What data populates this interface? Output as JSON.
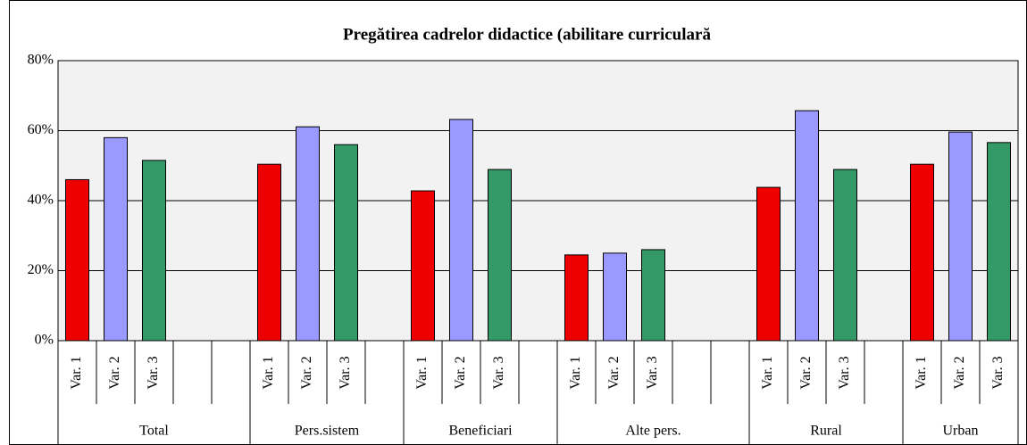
{
  "chart_data": {
    "type": "bar",
    "title": "Pregătirea cadrelor didactice (abilitare curriculară",
    "ylim": [
      0,
      80
    ],
    "yticks": [
      {
        "value": 0,
        "label": "0%"
      },
      {
        "value": 20,
        "label": "20%"
      },
      {
        "value": 40,
        "label": "40%"
      },
      {
        "value": 60,
        "label": "60%"
      },
      {
        "value": 80,
        "label": "80%"
      }
    ],
    "grid": true,
    "colors": [
      "#ee0000",
      "#9999ff",
      "#339966"
    ],
    "groups": [
      {
        "label": "Total",
        "categories": [
          "Var. 1",
          "Var. 2",
          "Var. 3",
          null,
          null
        ],
        "values": [
          46,
          58,
          51.5,
          null,
          null
        ]
      },
      {
        "label": "Pers.sistem",
        "categories": [
          "Var. 1",
          "Var. 2",
          "Var. 3",
          null
        ],
        "values": [
          50.4,
          61.1,
          56,
          null
        ]
      },
      {
        "label": "Beneficiari",
        "categories": [
          "Var. 1",
          "Var. 2",
          "Var. 3",
          null
        ],
        "values": [
          42.8,
          63.2,
          48.9,
          null
        ]
      },
      {
        "label": "Alte pers.",
        "categories": [
          "Var. 1",
          "Var. 2",
          "Var. 3",
          null,
          null
        ],
        "values": [
          24.5,
          25,
          26,
          null,
          null
        ]
      },
      {
        "label": "Rural",
        "categories": [
          "Var. 1",
          "Var. 2",
          "Var. 3",
          null
        ],
        "values": [
          43.8,
          65.7,
          48.9,
          null
        ]
      },
      {
        "label": "Urban",
        "categories": [
          "Var. 1",
          "Var. 2",
          "Var. 3"
        ],
        "values": [
          50.4,
          59.6,
          56.6
        ]
      }
    ]
  }
}
